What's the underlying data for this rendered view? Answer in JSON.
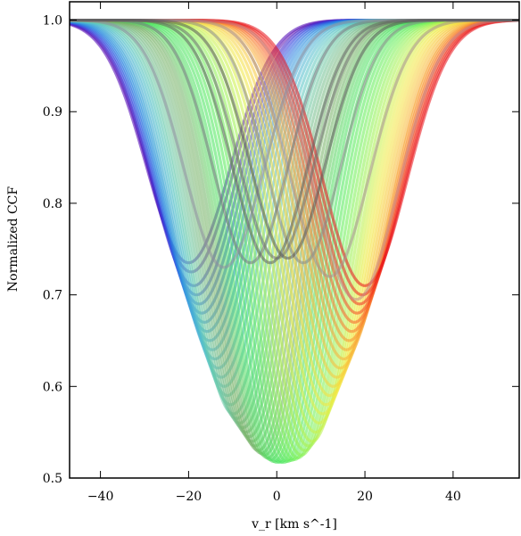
{
  "chart_data": {
    "type": "line",
    "xlabel": "v_r  [km s^-1]",
    "ylabel": "Normalized CCF",
    "xlim": [
      -47,
      55
    ],
    "ylim": [
      0.5,
      1.02
    ],
    "xticks": [
      -40,
      -20,
      0,
      20,
      40
    ],
    "yticks": [
      0.5,
      0.6,
      0.7,
      0.8,
      0.9,
      1.0
    ],
    "xtick_labels": [
      "−40",
      "−20",
      "0",
      "20",
      "40"
    ],
    "ytick_labels": [
      "0.5",
      "0.6",
      "0.7",
      "0.8",
      "0.9",
      "1.0"
    ],
    "grid": false,
    "legend": "none",
    "line_profile": "gaussian",
    "series": [
      {
        "center": -20.0,
        "minimum": 0.735,
        "width": 9.5,
        "color": "#4a00b4"
      },
      {
        "center": -19.4,
        "minimum": 0.725,
        "width": 9.5,
        "color": "#5a10b0"
      },
      {
        "center": -18.8,
        "minimum": 0.71,
        "width": 9.5,
        "color": "#3a1ec8"
      },
      {
        "center": -18.2,
        "minimum": 0.7,
        "width": 9.5,
        "color": "#3838d8"
      },
      {
        "center": -17.6,
        "minimum": 0.69,
        "width": 9.5,
        "color": "#3050e0"
      },
      {
        "center": -17.0,
        "minimum": 0.68,
        "width": 9.5,
        "color": "#2c66e0"
      },
      {
        "center": -16.4,
        "minimum": 0.67,
        "width": 9.5,
        "color": "#2a7ae0"
      },
      {
        "center": -15.8,
        "minimum": 0.66,
        "width": 9.5,
        "color": "#2a8ae0"
      },
      {
        "center": -15.2,
        "minimum": 0.65,
        "width": 9.5,
        "color": "#3498dc"
      },
      {
        "center": -14.6,
        "minimum": 0.64,
        "width": 9.5,
        "color": "#3ea4dc"
      },
      {
        "center": -14.0,
        "minimum": 0.63,
        "width": 9.5,
        "color": "#44aad6"
      },
      {
        "center": -13.3,
        "minimum": 0.62,
        "width": 9.5,
        "color": "#4ab4d2"
      },
      {
        "center": -12.6,
        "minimum": 0.61,
        "width": 9.5,
        "color": "#50bccc"
      },
      {
        "center": -11.9,
        "minimum": 0.6,
        "width": 9.5,
        "color": "#56c2c4"
      },
      {
        "center": -11.2,
        "minimum": 0.59,
        "width": 9.5,
        "color": "#5cc6bc"
      },
      {
        "center": -10.5,
        "minimum": 0.58,
        "width": 9.5,
        "color": "#62c8b0"
      },
      {
        "center": -9.8,
        "minimum": 0.57,
        "width": 9.5,
        "color": "#68c8a6"
      },
      {
        "center": -9.1,
        "minimum": 0.565,
        "width": 9.5,
        "color": "#6cc49c"
      },
      {
        "center": -8.4,
        "minimum": 0.56,
        "width": 9.5,
        "color": "#70c092"
      },
      {
        "center": -7.7,
        "minimum": 0.555,
        "width": 9.5,
        "color": "#72bc88"
      },
      {
        "center": -7.0,
        "minimum": 0.55,
        "width": 9.5,
        "color": "#74b880"
      },
      {
        "center": -6.3,
        "minimum": 0.545,
        "width": 9.5,
        "color": "#76b878"
      },
      {
        "center": -5.6,
        "minimum": 0.54,
        "width": 9.5,
        "color": "#76b470"
      },
      {
        "center": -4.9,
        "minimum": 0.535,
        "width": 9.5,
        "color": "#78b46a"
      },
      {
        "center": -4.2,
        "minimum": 0.53,
        "width": 9.5,
        "color": "#74b064"
      },
      {
        "center": -3.5,
        "minimum": 0.527,
        "width": 9.5,
        "color": "#6cb060"
      },
      {
        "center": -2.8,
        "minimum": 0.525,
        "width": 9.5,
        "color": "#64c05e"
      },
      {
        "center": -2.1,
        "minimum": 0.522,
        "width": 9.5,
        "color": "#5ccc5c"
      },
      {
        "center": -1.4,
        "minimum": 0.52,
        "width": 9.5,
        "color": "#54d45c"
      },
      {
        "center": -0.7,
        "minimum": 0.518,
        "width": 9.5,
        "color": "#4cdc5c"
      },
      {
        "center": 0.0,
        "minimum": 0.517,
        "width": 9.5,
        "color": "#48e05c"
      },
      {
        "center": 0.8,
        "minimum": 0.517,
        "width": 9.5,
        "color": "#44e45a"
      },
      {
        "center": 1.6,
        "minimum": 0.517,
        "width": 9.5,
        "color": "#48e858"
      },
      {
        "center": 2.4,
        "minimum": 0.518,
        "width": 9.5,
        "color": "#52ea56"
      },
      {
        "center": 3.2,
        "minimum": 0.519,
        "width": 9.5,
        "color": "#5eec54"
      },
      {
        "center": 4.0,
        "minimum": 0.52,
        "width": 9.5,
        "color": "#6aee52"
      },
      {
        "center": 4.8,
        "minimum": 0.522,
        "width": 9.5,
        "color": "#7af050"
      },
      {
        "center": 5.6,
        "minimum": 0.525,
        "width": 9.5,
        "color": "#8af04e"
      },
      {
        "center": 6.4,
        "minimum": 0.53,
        "width": 9.5,
        "color": "#9af04c"
      },
      {
        "center": 7.2,
        "minimum": 0.535,
        "width": 9.5,
        "color": "#aaf04a"
      },
      {
        "center": 8.0,
        "minimum": 0.54,
        "width": 9.5,
        "color": "#baf048"
      },
      {
        "center": 8.8,
        "minimum": 0.55,
        "width": 9.5,
        "color": "#caf046"
      },
      {
        "center": 9.6,
        "minimum": 0.56,
        "width": 9.5,
        "color": "#daee44"
      },
      {
        "center": 10.4,
        "minimum": 0.57,
        "width": 9.5,
        "color": "#e8ec42"
      },
      {
        "center": 11.2,
        "minimum": 0.58,
        "width": 9.5,
        "color": "#f0e840"
      },
      {
        "center": 12.0,
        "minimum": 0.59,
        "width": 9.5,
        "color": "#f4e03e"
      },
      {
        "center": 12.8,
        "minimum": 0.6,
        "width": 9.5,
        "color": "#f6d43c"
      },
      {
        "center": 13.6,
        "minimum": 0.61,
        "width": 9.5,
        "color": "#f8c83a"
      },
      {
        "center": 14.4,
        "minimum": 0.62,
        "width": 9.5,
        "color": "#f8bc38"
      },
      {
        "center": 15.2,
        "minimum": 0.63,
        "width": 9.5,
        "color": "#f8ae36"
      },
      {
        "center": 15.8,
        "minimum": 0.64,
        "width": 9.5,
        "color": "#f8a034"
      },
      {
        "center": 16.4,
        "minimum": 0.65,
        "width": 9.5,
        "color": "#f89030"
      },
      {
        "center": 17.0,
        "minimum": 0.66,
        "width": 9.5,
        "color": "#f8782c"
      },
      {
        "center": 17.6,
        "minimum": 0.67,
        "width": 9.5,
        "color": "#f86028"
      },
      {
        "center": 18.2,
        "minimum": 0.68,
        "width": 9.5,
        "color": "#f44824"
      },
      {
        "center": 18.8,
        "minimum": 0.69,
        "width": 9.5,
        "color": "#f03020"
      },
      {
        "center": 19.4,
        "minimum": 0.7,
        "width": 9.5,
        "color": "#ec201c"
      },
      {
        "center": 20.0,
        "minimum": 0.71,
        "width": 9.5,
        "color": "#e81018"
      },
      {
        "center": 18.0,
        "minimum": 0.695,
        "width": 9.5,
        "color": "#c88888"
      },
      {
        "center": 12.0,
        "minimum": 0.72,
        "width": 9.0,
        "color": "#a89090"
      },
      {
        "center": 6.0,
        "minimum": 0.735,
        "width": 8.5,
        "color": "#8a8a8a"
      },
      {
        "center": 0.0,
        "minimum": 0.74,
        "width": 8.5,
        "color": "#707070"
      },
      {
        "center": -6.0,
        "minimum": 0.735,
        "width": 8.5,
        "color": "#787880"
      },
      {
        "center": -12.0,
        "minimum": 0.73,
        "width": 9.0,
        "color": "#9090a0"
      },
      {
        "center": -1.5,
        "minimum": 0.735,
        "width": 8.5,
        "color": "#606060"
      },
      {
        "center": 2.5,
        "minimum": 0.74,
        "width": 8.5,
        "color": "#5a5a5a"
      }
    ]
  }
}
